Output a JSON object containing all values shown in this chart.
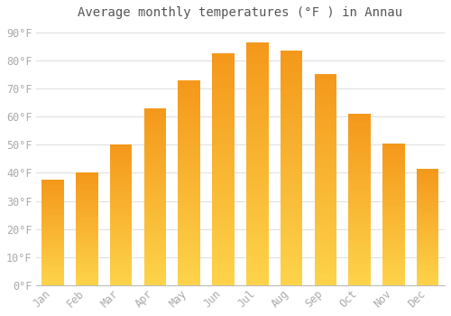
{
  "title": "Average monthly temperatures (°F ) in Annau",
  "months": [
    "Jan",
    "Feb",
    "Mar",
    "Apr",
    "May",
    "Jun",
    "Jul",
    "Aug",
    "Sep",
    "Oct",
    "Nov",
    "Dec"
  ],
  "values": [
    37.5,
    40.0,
    50.0,
    63.0,
    73.0,
    82.5,
    86.5,
    83.5,
    75.0,
    61.0,
    50.5,
    41.5
  ],
  "bar_color_top": "#F4971A",
  "bar_color_bottom": "#FDD34A",
  "background_color": "#ffffff",
  "grid_color": "#e0e0e0",
  "ylim": [
    0,
    93
  ],
  "yticks": [
    0,
    10,
    20,
    30,
    40,
    50,
    60,
    70,
    80,
    90
  ],
  "ytick_labels": [
    "0°F",
    "10°F",
    "20°F",
    "30°F",
    "40°F",
    "50°F",
    "60°F",
    "70°F",
    "80°F",
    "90°F"
  ],
  "title_fontsize": 10,
  "tick_fontsize": 8.5,
  "tick_color": "#aaaaaa",
  "font_family": "monospace",
  "bar_width": 0.65
}
